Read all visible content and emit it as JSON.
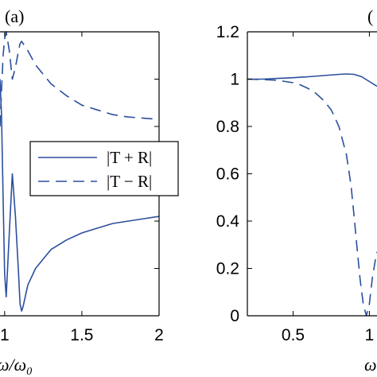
{
  "chart_data": [
    {
      "type": "line",
      "panel_label": "(a)",
      "xlabel": "ω/ω₀",
      "xlabel_visible": "ω/ω",
      "xlabel_sub": "0",
      "xlim": [
        0.97,
        2.0
      ],
      "ylim": [
        0,
        1.2
      ],
      "x_ticks": [
        1,
        1.5,
        2
      ],
      "x_tick_labels": [
        "1",
        "1.5",
        "2"
      ],
      "legend_position": "right",
      "series": [
        {
          "name": "|T + R|",
          "style": "solid",
          "color": "#2b4f9e",
          "x": [
            0.97,
            0.98,
            0.99,
            1.0,
            1.01,
            1.03,
            1.05,
            1.07,
            1.09,
            1.1,
            1.11,
            1.12,
            1.15,
            1.2,
            1.3,
            1.4,
            1.5,
            1.6,
            1.7,
            1.8,
            1.9,
            2.0
          ],
          "y": [
            1.0,
            0.85,
            0.5,
            0.18,
            0.08,
            0.35,
            0.6,
            0.42,
            0.18,
            0.05,
            0.02,
            0.04,
            0.13,
            0.2,
            0.28,
            0.32,
            0.35,
            0.37,
            0.39,
            0.4,
            0.41,
            0.42
          ]
        },
        {
          "name": "|T − R|",
          "style": "dashed",
          "color": "#2b4f9e",
          "x": [
            0.97,
            0.98,
            0.99,
            1.0,
            1.01,
            1.03,
            1.05,
            1.07,
            1.09,
            1.1,
            1.11,
            1.12,
            1.15,
            1.2,
            1.3,
            1.4,
            1.5,
            1.6,
            1.7,
            1.8,
            1.9,
            2.0
          ],
          "y": [
            0.8,
            0.95,
            1.1,
            1.17,
            1.2,
            1.12,
            1.0,
            1.05,
            1.12,
            1.15,
            1.16,
            1.15,
            1.12,
            1.06,
            0.98,
            0.93,
            0.89,
            0.87,
            0.85,
            0.84,
            0.835,
            0.83
          ]
        }
      ]
    },
    {
      "type": "line",
      "panel_label": "(",
      "xlabel": "ω",
      "xlim": [
        0.2,
        1.05
      ],
      "ylim": [
        0,
        1.2
      ],
      "y_ticks": [
        0,
        0.2,
        0.4,
        0.6,
        0.8,
        1,
        1.2
      ],
      "y_tick_labels": [
        "0",
        "0.2",
        "0.4",
        "0.6",
        "0.8",
        "1",
        "1.2"
      ],
      "x_ticks": [
        0.5,
        1
      ],
      "x_tick_labels": [
        "0.5",
        "1"
      ],
      "series": [
        {
          "style": "solid",
          "color": "#2b4f9e",
          "x": [
            0.2,
            0.3,
            0.4,
            0.5,
            0.6,
            0.7,
            0.8,
            0.85,
            0.9,
            0.95,
            1.0,
            1.05
          ],
          "y": [
            1.0,
            1.0,
            1.003,
            1.006,
            1.01,
            1.015,
            1.02,
            1.022,
            1.02,
            1.01,
            0.99,
            0.97
          ]
        },
        {
          "style": "dashed",
          "color": "#2b4f9e",
          "x": [
            0.2,
            0.3,
            0.4,
            0.45,
            0.5,
            0.55,
            0.6,
            0.65,
            0.7,
            0.75,
            0.8,
            0.85,
            0.88,
            0.9,
            0.92,
            0.94,
            0.96,
            0.98,
            1.0,
            1.02,
            1.04,
            1.05
          ],
          "y": [
            1.0,
            0.998,
            0.995,
            0.99,
            0.985,
            0.975,
            0.96,
            0.94,
            0.91,
            0.87,
            0.8,
            0.68,
            0.55,
            0.42,
            0.28,
            0.15,
            0.05,
            0.0,
            0.05,
            0.16,
            0.24,
            0.27
          ]
        }
      ]
    }
  ]
}
